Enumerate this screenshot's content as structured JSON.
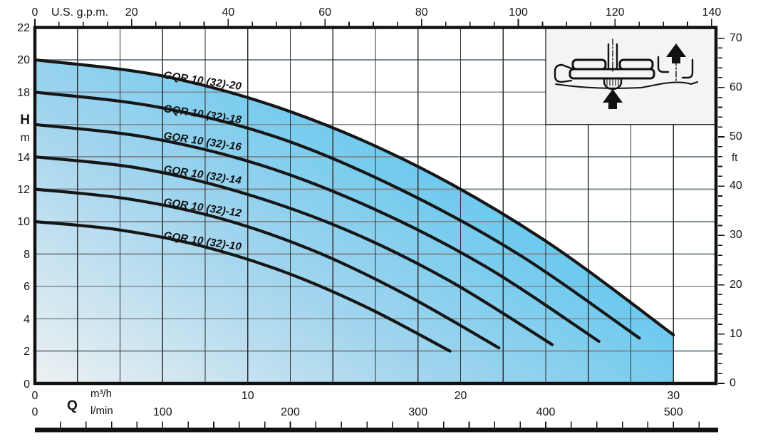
{
  "colors": {
    "curve": "#161616",
    "plot_border": "#111111",
    "grid_vertical": "#2f2f2f",
    "grid_horizontal": "#7e8b92",
    "fill_gradient_light": "#eef1f2",
    "fill_gradient_mid": "#a3d5ee",
    "fill_gradient_strong": "#56c5ef",
    "icon_box_background": "#f4f4f4",
    "text": "#141414"
  },
  "labels": {
    "top_axis_unit": "U.S. g.p.m.",
    "left_axis_symbol": "H",
    "left_axis_unit": "m",
    "right_axis_unit": "ft",
    "bottom_axis_symbol": "Q",
    "bottom_axis_unit_m3h": "m³/h",
    "bottom_axis_unit_lmin": "l/min"
  },
  "pump_icon": {
    "name": "pump-cross-section-schematic",
    "description": "horizontal pump section with bottom inlet up-arrow and right outlet up-arrow"
  },
  "chart_data": {
    "type": "line",
    "title": "GQR 10 (32) pump head/flow performance curves",
    "grid": {
      "x_step_m3h": 2,
      "y_step_m": 2,
      "grid_on": true
    },
    "axes": {
      "top_gpm": {
        "unit": "U.S. g.p.m.",
        "ticks": [
          0,
          20,
          40,
          60,
          80,
          100,
          120,
          140
        ],
        "minor_step": 5,
        "minor_max": 140
      },
      "left_H_m": {
        "symbol": "H",
        "unit": "m",
        "range": [
          0,
          22
        ],
        "tick_step": 2,
        "tick_labels": [
          22,
          20,
          18,
          14,
          12,
          10,
          8,
          6,
          4,
          2,
          0
        ],
        "label_16_replaced_by_axis_symbol": true
      },
      "right_ft": {
        "unit": "ft",
        "ticks": [
          70,
          60,
          50,
          40,
          30,
          20,
          10,
          0
        ],
        "minor_step": 2,
        "minor_max": 70
      },
      "bottom_m3h": {
        "unit": "m³/h",
        "ticks": [
          0,
          10,
          20,
          30
        ],
        "range": [
          0,
          32
        ]
      },
      "bottom_lmin": {
        "unit": "l/min",
        "ticks": [
          0,
          100,
          200,
          300,
          400,
          500
        ],
        "minor_step": 20,
        "minor_max": 520
      }
    },
    "fill_region": "below top curve GQR 10 (32)-20, down to H=0, right edge at Q=30 m³/h",
    "label_angle_deg": 8.5,
    "series": [
      {
        "name": "GQR 10 (32)-20",
        "label_xy": [
          231,
          97
        ],
        "points": [
          [
            0,
            20
          ],
          [
            6,
            19.0
          ],
          [
            12,
            16.8
          ],
          [
            18,
            13.4
          ],
          [
            24,
            8.8
          ],
          [
            30,
            3.0
          ]
        ]
      },
      {
        "name": "GQR 10 (32)-18",
        "label_xy": [
          231,
          144
        ],
        "points": [
          [
            0,
            18
          ],
          [
            5.7,
            17.1
          ],
          [
            11.4,
            15.2
          ],
          [
            17.0,
            12.1
          ],
          [
            22.7,
            8.0
          ],
          [
            28.4,
            2.8
          ]
        ]
      },
      {
        "name": "GQR 10 (32)-16",
        "label_xy": [
          231,
          182
        ],
        "points": [
          [
            0,
            16
          ],
          [
            5.3,
            15.2
          ],
          [
            10.6,
            13.5
          ],
          [
            15.9,
            10.8
          ],
          [
            21.2,
            7.2
          ],
          [
            26.5,
            2.6
          ]
        ]
      },
      {
        "name": "GQR 10 (32)-14",
        "label_xy": [
          231,
          229
        ],
        "points": [
          [
            0,
            14
          ],
          [
            4.9,
            13.3
          ],
          [
            9.7,
            11.8
          ],
          [
            14.6,
            9.5
          ],
          [
            19.4,
            6.4
          ],
          [
            24.3,
            2.4
          ]
        ]
      },
      {
        "name": "GQR 10 (32)-12",
        "label_xy": [
          231,
          275
        ],
        "points": [
          [
            0,
            12
          ],
          [
            4.4,
            11.4
          ],
          [
            8.7,
            10.2
          ],
          [
            13.1,
            8.2
          ],
          [
            17.4,
            5.5
          ],
          [
            21.8,
            2.2
          ]
        ]
      },
      {
        "name": "GQR 10 (32)-10",
        "label_xy": [
          231,
          322
        ],
        "points": [
          [
            0,
            10
          ],
          [
            3.9,
            9.5
          ],
          [
            7.8,
            8.5
          ],
          [
            11.7,
            6.9
          ],
          [
            15.6,
            4.7
          ],
          [
            19.5,
            2.0
          ]
        ]
      }
    ]
  }
}
